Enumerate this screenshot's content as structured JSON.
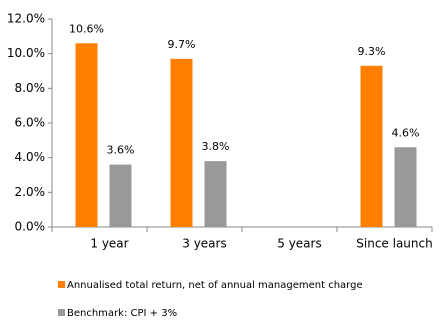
{
  "chart_data": {
    "type": "bar",
    "categories": [
      "1 year",
      "3 years",
      "5 years",
      "Since launch"
    ],
    "series": [
      {
        "name": "Annualised total return, net of annual management charge",
        "color": "#ff8000",
        "values": [
          10.6,
          9.7,
          null,
          9.3
        ],
        "value_labels": [
          "10.6%",
          "9.7%",
          null,
          "9.3%"
        ]
      },
      {
        "name": "Benchmark: CPI + 3%",
        "color": "#999999",
        "values": [
          3.6,
          3.8,
          null,
          4.6
        ],
        "value_labels": [
          "3.6%",
          "3.8%",
          null,
          "4.6%"
        ]
      }
    ],
    "ylim": [
      0,
      12
    ],
    "yticks": [
      {
        "value": 0,
        "label": "0.0%"
      },
      {
        "value": 2,
        "label": "2.0%"
      },
      {
        "value": 4,
        "label": "4.0%"
      },
      {
        "value": 6,
        "label": "6.0%"
      },
      {
        "value": 8,
        "label": "8.0%"
      },
      {
        "value": 10,
        "label": "10.0%"
      },
      {
        "value": 12,
        "label": "12.0%"
      }
    ],
    "grid": false,
    "legend": "bottom"
  }
}
